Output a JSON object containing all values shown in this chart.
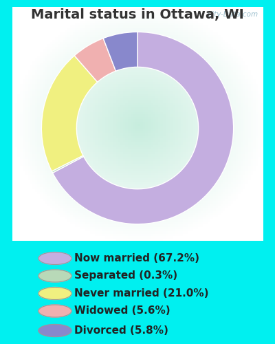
{
  "title": "Marital status in Ottawa, WI",
  "slices": [
    67.2,
    0.3,
    21.0,
    5.6,
    5.8
  ],
  "labels": [
    "Now married (67.2%)",
    "Separated (0.3%)",
    "Never married (21.0%)",
    "Widowed (5.6%)",
    "Divorced (5.8%)"
  ],
  "colors": [
    "#c4aee0",
    "#b8d9b8",
    "#f0f080",
    "#f0b0b0",
    "#8888cc"
  ],
  "bg_outer": "#00f0f0",
  "title_color": "#333333",
  "title_fontsize": 14,
  "legend_fontsize": 11,
  "watermark": "City-Data.com"
}
